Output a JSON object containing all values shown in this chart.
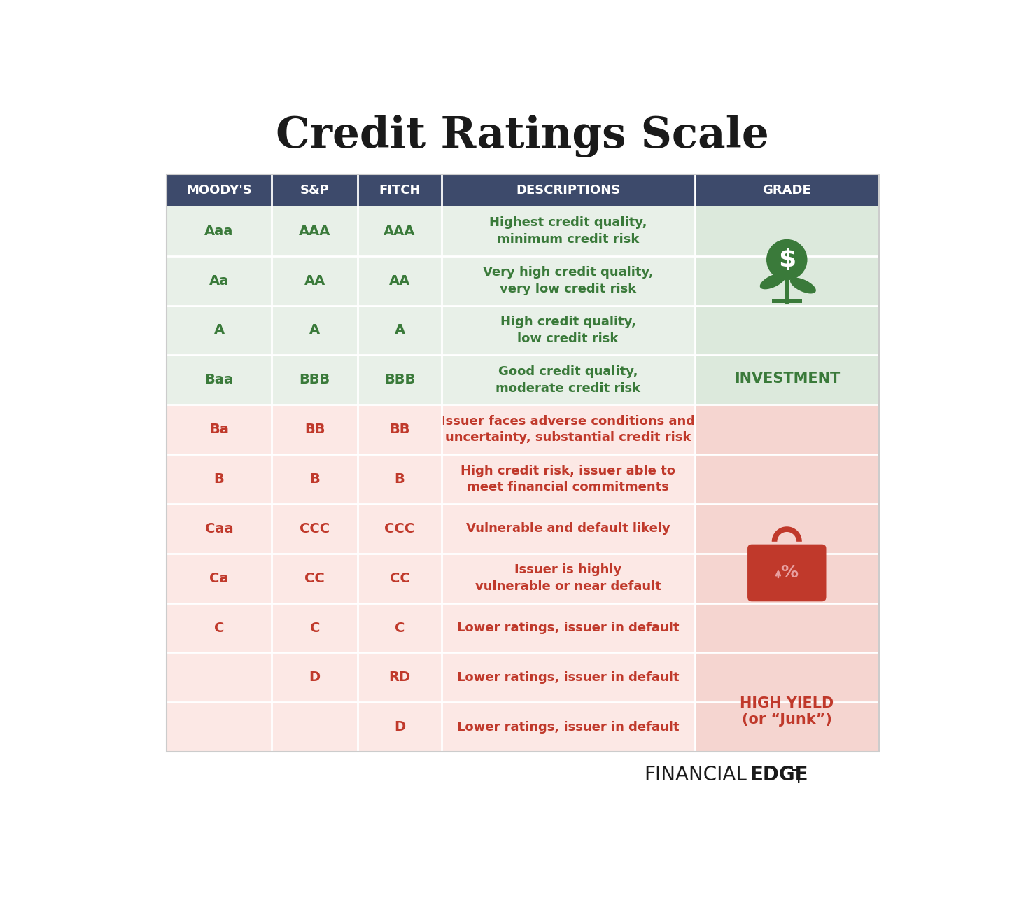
{
  "title": "Credit Ratings Scale",
  "title_fontsize": 44,
  "background_color": "#ffffff",
  "header_bg": "#3d4a6b",
  "header_text_color": "#ffffff",
  "header_fontsize": 13,
  "headers": [
    "MOODY'S",
    "S&P",
    "FITCH",
    "DESCRIPTIONS",
    "GRADE"
  ],
  "investment_bg": "#dce9dc",
  "investment_row_bg": "#e8f0e8",
  "junk_bg": "#f5d5d0",
  "junk_row_bg": "#fce8e5",
  "investment_text_color": "#3a7a3a",
  "junk_text_color": "#c0392b",
  "cell_fontsize": 14,
  "desc_fontsize": 13,
  "rows": [
    {
      "moodys": "Aaa",
      "sp": "AAA",
      "fitch": "AAA",
      "desc": "Highest credit quality,\nminimum credit risk",
      "grade_type": "investment"
    },
    {
      "moodys": "Aa",
      "sp": "AA",
      "fitch": "AA",
      "desc": "Very high credit quality,\nvery low credit risk",
      "grade_type": "investment"
    },
    {
      "moodys": "A",
      "sp": "A",
      "fitch": "A",
      "desc": "High credit quality,\nlow credit risk",
      "grade_type": "investment"
    },
    {
      "moodys": "Baa",
      "sp": "BBB",
      "fitch": "BBB",
      "desc": "Good credit quality,\nmoderate credit risk",
      "grade_type": "investment"
    },
    {
      "moodys": "Ba",
      "sp": "BB",
      "fitch": "BB",
      "desc": "Issuer faces adverse conditions and\nuncertainty, substantial credit risk",
      "grade_type": "junk"
    },
    {
      "moodys": "B",
      "sp": "B",
      "fitch": "B",
      "desc": "High credit risk, issuer able to\nmeet financial commitments",
      "grade_type": "junk"
    },
    {
      "moodys": "Caa",
      "sp": "CCC",
      "fitch": "CCC",
      "desc": "Vulnerable and default likely",
      "grade_type": "junk"
    },
    {
      "moodys": "Ca",
      "sp": "CC",
      "fitch": "CC",
      "desc": "Issuer is highly\nvulnerable or near default",
      "grade_type": "junk"
    },
    {
      "moodys": "C",
      "sp": "C",
      "fitch": "C",
      "desc": "Lower ratings, issuer in default",
      "grade_type": "junk"
    },
    {
      "moodys": "",
      "sp": "D",
      "fitch": "RD",
      "desc": "Lower ratings, issuer in default",
      "grade_type": "junk"
    },
    {
      "moodys": "",
      "sp": "",
      "fitch": "D",
      "desc": "Lower ratings, issuer in default",
      "grade_type": "junk"
    }
  ]
}
